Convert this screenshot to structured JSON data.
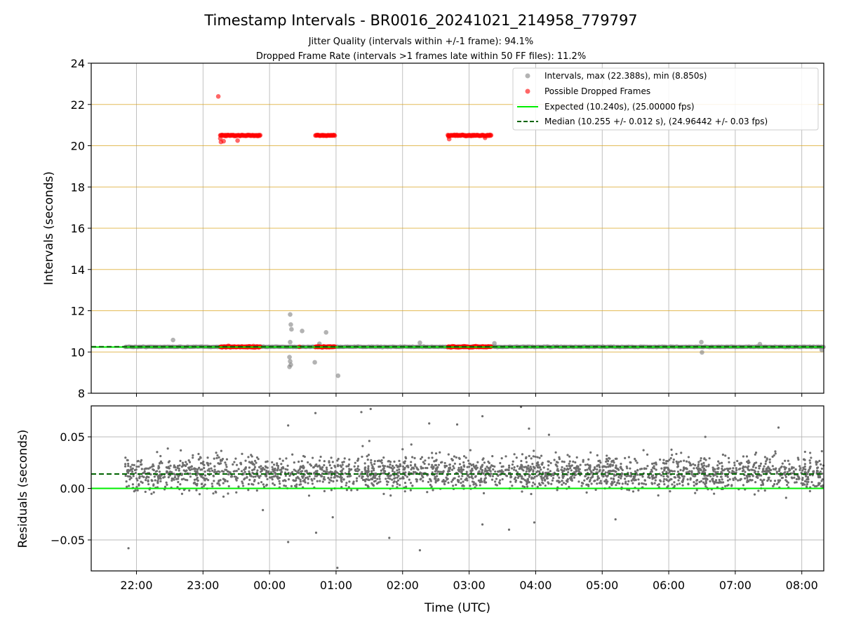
{
  "chart_data": [
    {
      "type": "scatter",
      "title": "Timestamp Intervals - BR0016_20241021_214958_779797",
      "subtitle_lines": [
        "Jitter Quality (intervals within +/-1 frame): 94.1%",
        "Dropped Frame Rate (intervals >1 frames late within 50 FF files): 11.2%"
      ],
      "xlabel": "",
      "ylabel": "Intervals (seconds)",
      "x_units": "hours after 21:00 UTC",
      "xlim": [
        0.32,
        11.33
      ],
      "ylim": [
        8,
        24
      ],
      "yticks": [
        8,
        10,
        12,
        14,
        16,
        18,
        20,
        22,
        24
      ],
      "x_tick_values": [
        1,
        2,
        3,
        4,
        5,
        6,
        7,
        8,
        9,
        10,
        11
      ],
      "x_tick_labels": [
        "22:00",
        "23:00",
        "00:00",
        "01:00",
        "02:00",
        "03:00",
        "04:00",
        "05:00",
        "06:00",
        "07:00",
        "08:00"
      ],
      "grid": true,
      "highlight_grid_color": "#daa520",
      "legend_position": "top-right",
      "legend": [
        {
          "label": "Intervals, max (22.388s), min (8.850s)",
          "kind": "marker",
          "color": "#808080"
        },
        {
          "label": "Possible Dropped Frames",
          "kind": "marker",
          "color": "#ff0000"
        },
        {
          "label": "Expected (10.240s), (25.00000 fps)",
          "kind": "line",
          "color": "#00ee00"
        },
        {
          "label": "Median (10.255 +/- 0.012 s), (24.96442 +/- 0.03 fps)",
          "kind": "dashed",
          "color": "#006400"
        }
      ],
      "expected_value": 10.24,
      "median_value": 10.255,
      "data_span": [
        0.83,
        11.33
      ],
      "baseline_interval": 10.25,
      "dropped_segments": [
        {
          "x_start": 2.26,
          "x_end": 2.86,
          "upper": 20.5,
          "lower": 10.25
        },
        {
          "x_start": 3.69,
          "x_end": 3.98,
          "upper": 20.5,
          "lower": 10.25
        },
        {
          "x_start": 5.68,
          "x_end": 6.33,
          "upper": 20.5,
          "lower": 10.25
        }
      ],
      "outliers": [
        {
          "x": 1.55,
          "y": 10.58
        },
        {
          "x": 3.31,
          "y": 11.82
        },
        {
          "x": 3.32,
          "y": 11.33
        },
        {
          "x": 3.33,
          "y": 11.1
        },
        {
          "x": 3.31,
          "y": 10.48
        },
        {
          "x": 3.3,
          "y": 9.75
        },
        {
          "x": 3.31,
          "y": 9.55
        },
        {
          "x": 3.32,
          "y": 9.38
        },
        {
          "x": 3.3,
          "y": 9.28
        },
        {
          "x": 3.49,
          "y": 11.02
        },
        {
          "x": 3.68,
          "y": 9.5
        },
        {
          "x": 3.85,
          "y": 10.95
        },
        {
          "x": 4.03,
          "y": 8.85
        },
        {
          "x": 3.75,
          "y": 10.4
        },
        {
          "x": 5.26,
          "y": 10.45
        },
        {
          "x": 9.49,
          "y": 10.48
        },
        {
          "x": 9.5,
          "y": 9.98
        },
        {
          "x": 10.37,
          "y": 10.38
        },
        {
          "x": 11.3,
          "y": 10.1
        },
        {
          "x": 6.38,
          "y": 10.42
        }
      ],
      "dropped_outliers": [
        {
          "x": 2.23,
          "y": 22.39
        },
        {
          "x": 2.27,
          "y": 20.18
        },
        {
          "x": 2.26,
          "y": 20.35
        },
        {
          "x": 2.31,
          "y": 20.22
        },
        {
          "x": 2.52,
          "y": 20.25
        },
        {
          "x": 5.7,
          "y": 20.32
        },
        {
          "x": 6.24,
          "y": 20.38
        },
        {
          "x": 5.69,
          "y": 20.45
        },
        {
          "x": 3.45,
          "y": 10.25
        }
      ]
    },
    {
      "type": "scatter",
      "title": "",
      "xlabel": "Time (UTC)",
      "ylabel": "Residuals (seconds)",
      "xlim": [
        0.32,
        11.33
      ],
      "ylim": [
        -0.08,
        0.08
      ],
      "yticks": [
        -0.05,
        0.0,
        0.05
      ],
      "ytick_labels": [
        "−0.05",
        "0.00",
        "0.05"
      ],
      "x_tick_values": [
        1,
        2,
        3,
        4,
        5,
        6,
        7,
        8,
        9,
        10,
        11
      ],
      "x_tick_labels": [
        "22:00",
        "23:00",
        "00:00",
        "01:00",
        "02:00",
        "03:00",
        "04:00",
        "05:00",
        "06:00",
        "07:00",
        "08:00"
      ],
      "grid": true,
      "expected_residual": 0.0,
      "median_residual": 0.014,
      "residual_center": 0.015,
      "residual_spread": 0.011,
      "data_span": [
        0.83,
        11.33
      ],
      "residual_outliers": [
        {
          "x": 0.88,
          "y": -0.058
        },
        {
          "x": 3.28,
          "y": 0.061
        },
        {
          "x": 3.28,
          "y": -0.052
        },
        {
          "x": 3.69,
          "y": 0.073
        },
        {
          "x": 3.7,
          "y": -0.043
        },
        {
          "x": 4.02,
          "y": -0.077
        },
        {
          "x": 4.38,
          "y": 0.074
        },
        {
          "x": 4.52,
          "y": 0.077
        },
        {
          "x": 4.8,
          "y": -0.048
        },
        {
          "x": 5.26,
          "y": -0.06
        },
        {
          "x": 5.4,
          "y": 0.063
        },
        {
          "x": 5.82,
          "y": 0.062
        },
        {
          "x": 6.2,
          "y": 0.07
        },
        {
          "x": 6.2,
          "y": -0.035
        },
        {
          "x": 6.6,
          "y": -0.04
        },
        {
          "x": 6.78,
          "y": 0.079
        },
        {
          "x": 6.98,
          "y": -0.033
        },
        {
          "x": 6.9,
          "y": 0.058
        },
        {
          "x": 7.2,
          "y": 0.052
        },
        {
          "x": 8.2,
          "y": -0.03
        },
        {
          "x": 9.55,
          "y": 0.05
        },
        {
          "x": 10.65,
          "y": 0.059
        },
        {
          "x": 2.9,
          "y": -0.021
        },
        {
          "x": 4.4,
          "y": 0.041
        },
        {
          "x": 4.5,
          "y": 0.046
        },
        {
          "x": 3.95,
          "y": -0.028
        },
        {
          "x": 5.0,
          "y": 0.038
        }
      ]
    }
  ]
}
